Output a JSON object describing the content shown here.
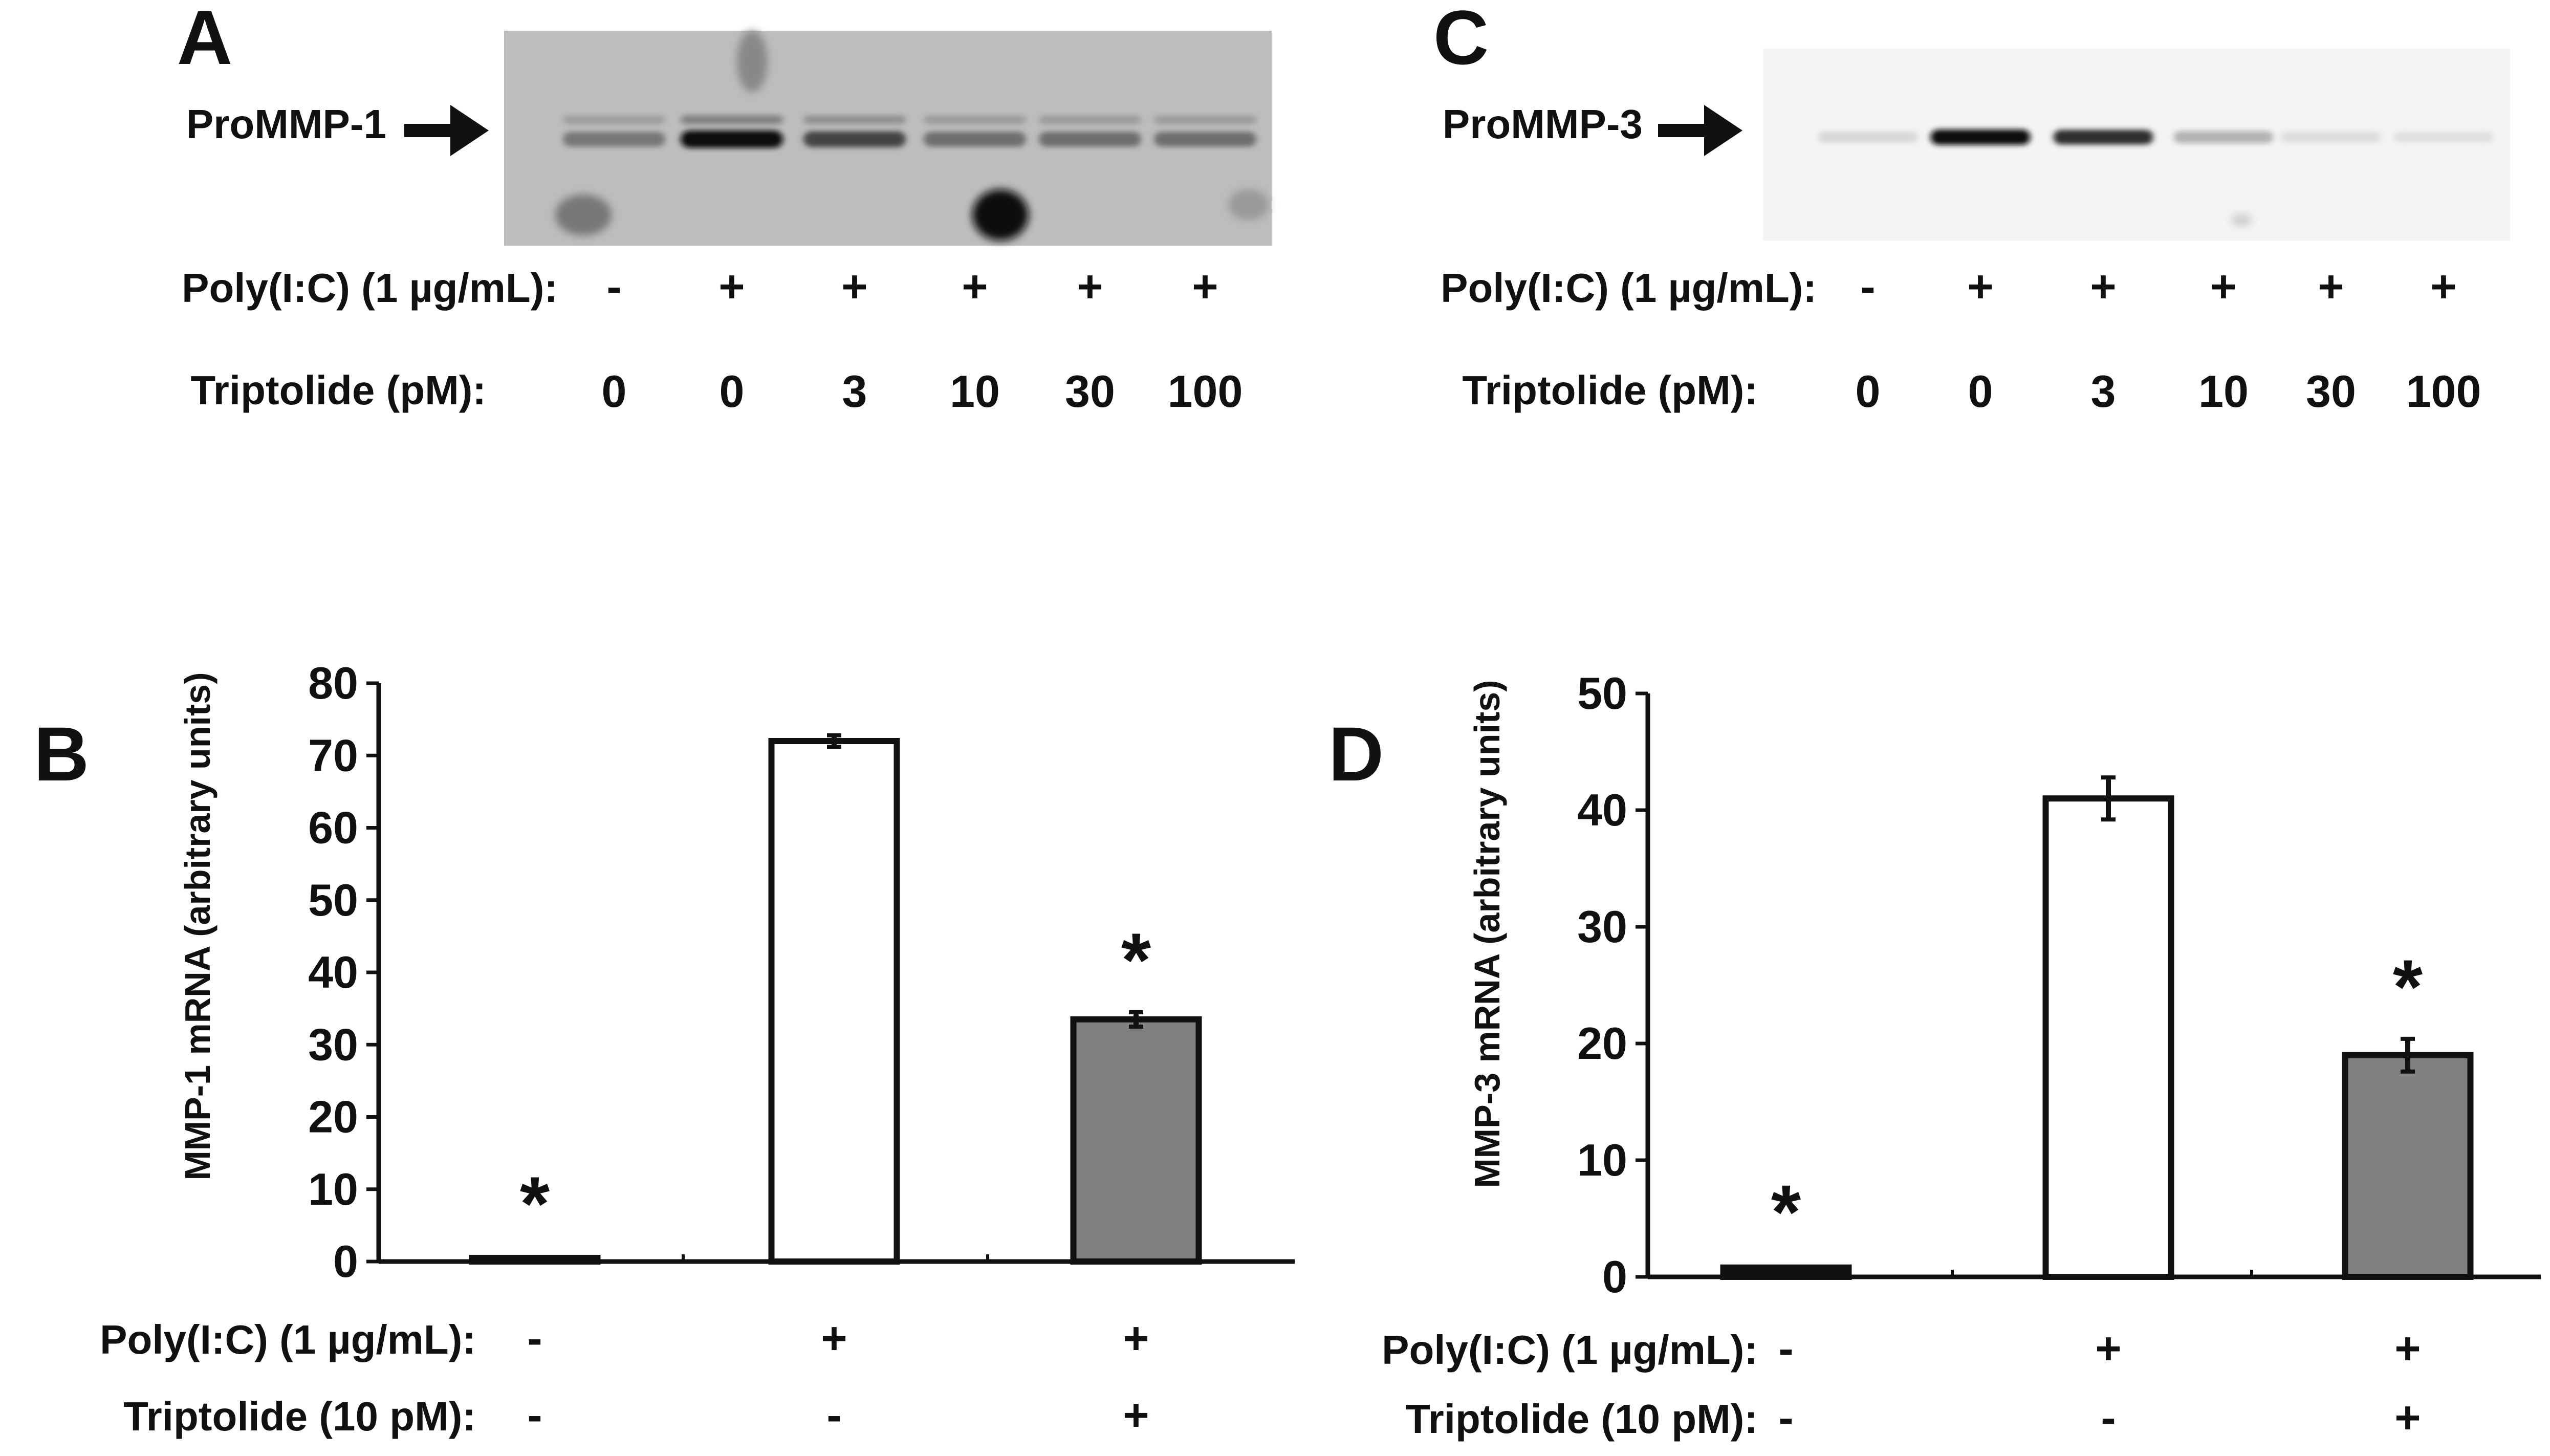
{
  "panels": {
    "A": {
      "letter": "A",
      "band_label": "ProMMP-1",
      "rows": [
        {
          "label": "Poly(I:C) (1 µg/mL):",
          "values": [
            "-",
            "+",
            "+",
            "+",
            "+",
            "+"
          ]
        },
        {
          "label": "Triptolide (pM):",
          "values": [
            "0",
            "0",
            "3",
            "10",
            "30",
            "100"
          ]
        }
      ],
      "band_intensity": [
        0.45,
        1.0,
        0.7,
        0.5,
        0.5,
        0.5
      ]
    },
    "C": {
      "letter": "C",
      "band_label": "ProMMP-3",
      "rows": [
        {
          "label": "Poly(I:C) (1 µg/mL):",
          "values": [
            "-",
            "+",
            "+",
            "+",
            "+",
            "+"
          ]
        },
        {
          "label": "Triptolide (pM):",
          "values": [
            "0",
            "0",
            "3",
            "10",
            "30",
            "100"
          ]
        }
      ],
      "band_intensity": [
        0.15,
        1.0,
        0.85,
        0.35,
        0.12,
        0.1
      ]
    }
  },
  "chart_data": [
    {
      "type": "bar",
      "panel": "B",
      "letter": "B",
      "ylabel": "MMP-1 mRNA (arbitrary units)",
      "ylim": [
        0,
        80
      ],
      "yticks": [
        0,
        10,
        20,
        30,
        40,
        50,
        60,
        70,
        80
      ],
      "values": [
        0.5,
        72,
        33.5
      ],
      "errors": [
        0.3,
        0.8,
        1.0
      ],
      "bar_colors": [
        "#111111",
        "#ffffff",
        "#808080"
      ],
      "significance": [
        "*",
        "",
        "*"
      ],
      "rows": [
        {
          "label": "Poly(I:C) (1 µg/mL):",
          "values": [
            "-",
            "+",
            "+"
          ]
        },
        {
          "label": "Triptolide (10 pM):",
          "values": [
            "-",
            "-",
            "+"
          ]
        }
      ]
    },
    {
      "type": "bar",
      "panel": "D",
      "letter": "D",
      "ylabel": "MMP-3 mRNA (arbitrary units)",
      "ylim": [
        0,
        50
      ],
      "yticks": [
        0,
        10,
        20,
        30,
        40,
        50
      ],
      "values": [
        0.8,
        41,
        19
      ],
      "errors": [
        0.3,
        1.8,
        1.4
      ],
      "bar_colors": [
        "#111111",
        "#ffffff",
        "#808080"
      ],
      "significance": [
        "*",
        "",
        "*"
      ],
      "rows": [
        {
          "label": "Poly(I:C) (1 µg/mL):",
          "values": [
            "-",
            "+",
            "+"
          ]
        },
        {
          "label": "Triptolide (10 pM):",
          "values": [
            "-",
            "-",
            "+"
          ]
        }
      ]
    }
  ]
}
